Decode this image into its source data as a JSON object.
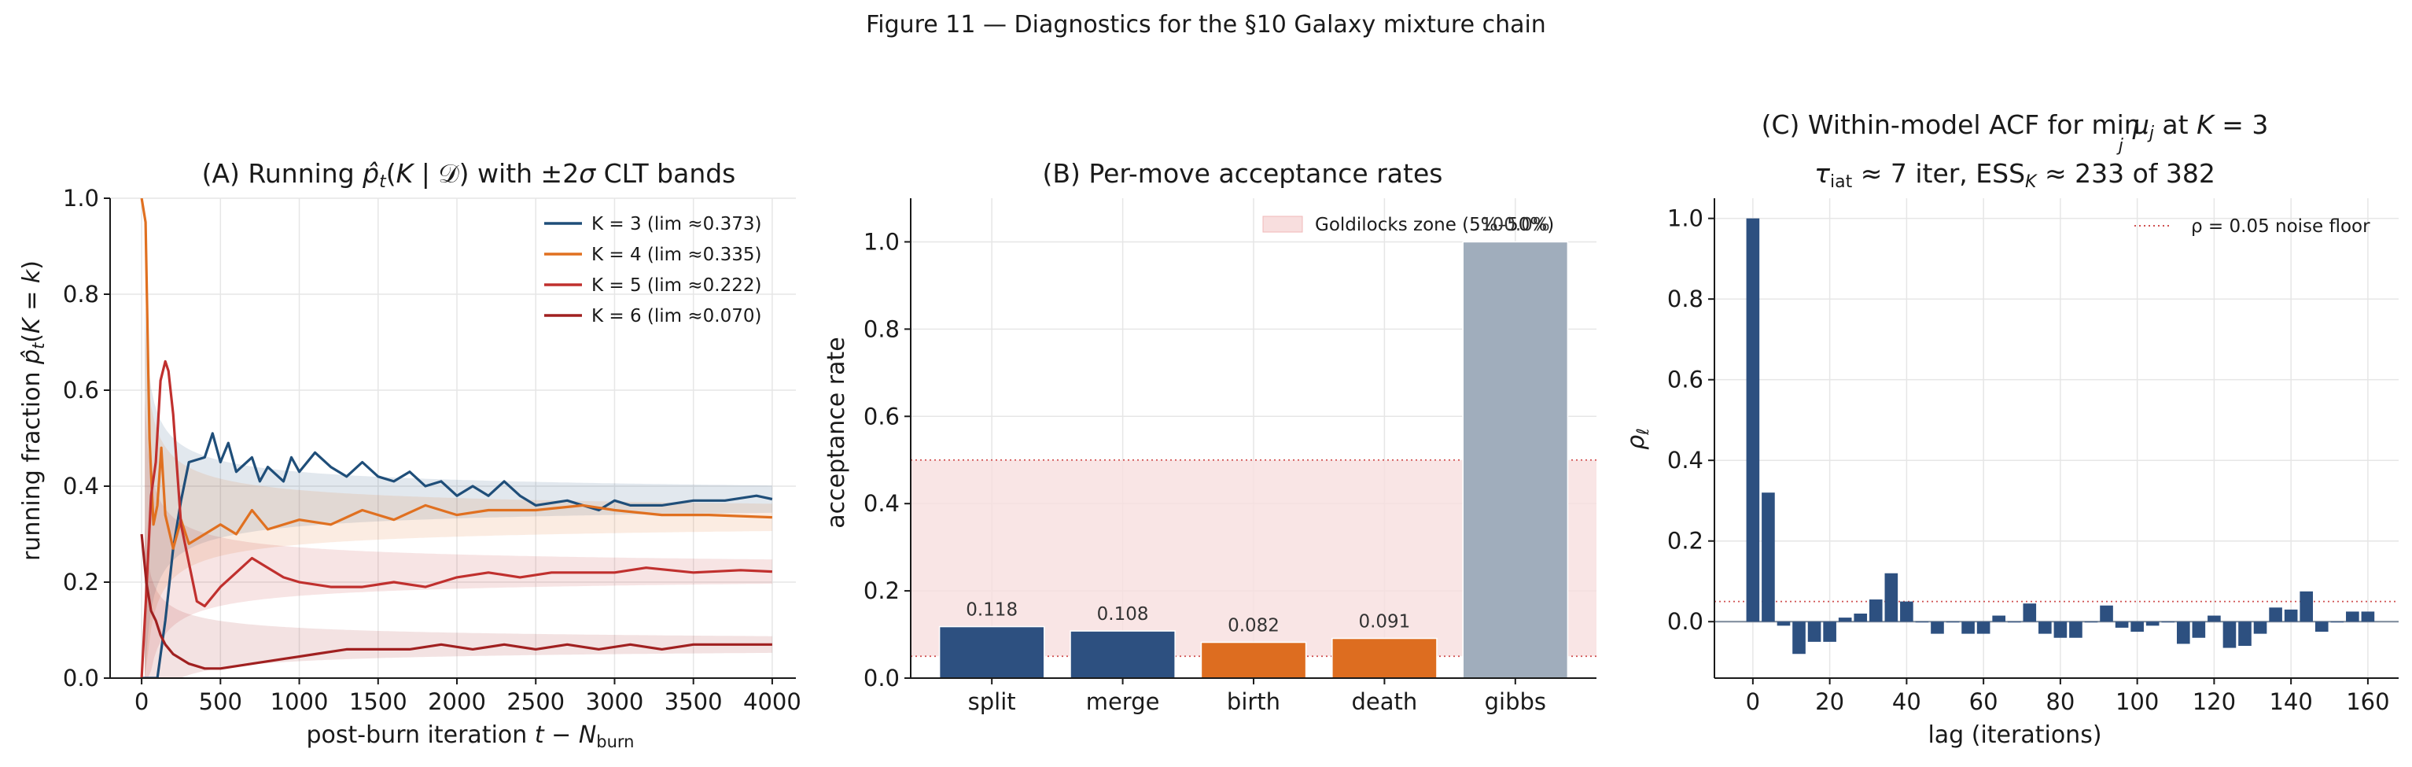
{
  "figure_title": "Figure 11 — Diagnostics for the §10 Galaxy mixture chain",
  "colors": {
    "K3": "#1f4e79",
    "K4": "#e07020",
    "K5": "#c0302e",
    "K6": "#a02020",
    "blue_bar": "#2d5080",
    "orange_bar": "#dd6d20",
    "gray_bar": "#a0adbc",
    "band_fill": "#f8dede",
    "ref_red": "#d05050"
  },
  "chart_data": [
    {
      "id": "A",
      "type": "line",
      "title": "(A) Running p̂ₜ(K | 𝒟) with ±2σ CLT bands",
      "xlabel": "post-burn iteration t − N_burn",
      "ylabel": "running fraction p̂ₜ(K = k)",
      "xlim": [
        -200,
        4150
      ],
      "ylim": [
        0,
        1.0
      ],
      "xticks": [
        0,
        500,
        1000,
        1500,
        2000,
        2500,
        3000,
        3500,
        4000
      ],
      "yticks": [
        0.0,
        0.2,
        0.4,
        0.6,
        0.8,
        1.0
      ],
      "grid": true,
      "legend": "top-right",
      "series": [
        {
          "name": "K = 3 (lim ≈0.373)",
          "color": "#1f4e79",
          "x": [
            0,
            100,
            150,
            200,
            250,
            300,
            400,
            450,
            500,
            550,
            600,
            700,
            750,
            800,
            900,
            950,
            1000,
            1100,
            1200,
            1300,
            1400,
            1500,
            1600,
            1700,
            1800,
            1900,
            2000,
            2100,
            2200,
            2300,
            2400,
            2500,
            2700,
            2900,
            3000,
            3100,
            3300,
            3500,
            3700,
            3900,
            4000
          ],
          "y": [
            0,
            0,
            0.12,
            0.27,
            0.37,
            0.45,
            0.46,
            0.51,
            0.45,
            0.49,
            0.43,
            0.46,
            0.41,
            0.44,
            0.41,
            0.46,
            0.43,
            0.47,
            0.44,
            0.42,
            0.45,
            0.42,
            0.41,
            0.43,
            0.4,
            0.41,
            0.38,
            0.4,
            0.38,
            0.41,
            0.38,
            0.36,
            0.37,
            0.35,
            0.37,
            0.36,
            0.36,
            0.37,
            0.37,
            0.38,
            0.373
          ]
        },
        {
          "name": "K = 4 (lim ≈0.335)",
          "color": "#e07020",
          "x": [
            0,
            25,
            50,
            75,
            100,
            125,
            150,
            200,
            250,
            300,
            400,
            500,
            600,
            700,
            800,
            1000,
            1200,
            1400,
            1600,
            1800,
            2000,
            2200,
            2500,
            2800,
            3000,
            3300,
            3600,
            4000
          ],
          "y": [
            1.0,
            0.95,
            0.5,
            0.32,
            0.36,
            0.48,
            0.34,
            0.27,
            0.33,
            0.28,
            0.3,
            0.32,
            0.3,
            0.35,
            0.31,
            0.33,
            0.32,
            0.35,
            0.33,
            0.36,
            0.34,
            0.35,
            0.35,
            0.36,
            0.35,
            0.34,
            0.34,
            0.335
          ]
        },
        {
          "name": "K = 5 (lim ≈0.222)",
          "color": "#c0302e",
          "x": [
            0,
            30,
            60,
            90,
            120,
            150,
            170,
            200,
            250,
            300,
            350,
            400,
            500,
            600,
            700,
            800,
            900,
            1000,
            1200,
            1400,
            1600,
            1800,
            2000,
            2200,
            2400,
            2600,
            2800,
            3000,
            3200,
            3500,
            3800,
            4000
          ],
          "y": [
            0,
            0.18,
            0.38,
            0.45,
            0.62,
            0.66,
            0.64,
            0.55,
            0.32,
            0.24,
            0.16,
            0.15,
            0.19,
            0.22,
            0.25,
            0.23,
            0.21,
            0.2,
            0.19,
            0.19,
            0.2,
            0.19,
            0.21,
            0.22,
            0.21,
            0.22,
            0.22,
            0.22,
            0.23,
            0.22,
            0.225,
            0.222
          ]
        },
        {
          "name": "K = 6 (lim ≈0.070)",
          "color": "#a02020",
          "x": [
            0,
            30,
            60,
            90,
            120,
            150,
            200,
            250,
            300,
            400,
            500,
            700,
            900,
            1100,
            1300,
            1500,
            1700,
            1900,
            2100,
            2300,
            2500,
            2700,
            2900,
            3100,
            3300,
            3500,
            3700,
            4000
          ],
          "y": [
            0.3,
            0.2,
            0.14,
            0.12,
            0.09,
            0.07,
            0.05,
            0.04,
            0.03,
            0.02,
            0.02,
            0.03,
            0.04,
            0.05,
            0.06,
            0.06,
            0.06,
            0.07,
            0.06,
            0.07,
            0.06,
            0.07,
            0.06,
            0.07,
            0.06,
            0.07,
            0.07,
            0.07
          ]
        }
      ],
      "bands": [
        {
          "series": "K3",
          "limit": 0.373,
          "sigma0": 0.9
        },
        {
          "series": "K4",
          "limit": 0.335,
          "sigma0": 0.9
        },
        {
          "series": "K5",
          "limit": 0.222,
          "sigma0": 0.8
        },
        {
          "series": "K6",
          "limit": 0.07,
          "sigma0": 0.55
        }
      ]
    },
    {
      "id": "B",
      "type": "bar",
      "title": "(B) Per-move acceptance rates",
      "ylabel": "acceptance rate",
      "ylim": [
        0,
        1.1
      ],
      "yticks": [
        0.0,
        0.2,
        0.4,
        0.6,
        0.8,
        1.0
      ],
      "categories": [
        "split",
        "merge",
        "birth",
        "death",
        "gibbs"
      ],
      "values": [
        0.118,
        0.108,
        0.082,
        0.091,
        1.0
      ],
      "value_labels": [
        "0.118",
        "0.108",
        "0.082",
        "0.091",
        "100.0%"
      ],
      "bar_colors": [
        "#2d5080",
        "#2d5080",
        "#dd6d20",
        "#dd6d20",
        "#a0adbc"
      ],
      "band": {
        "label": "Goldilocks zone (5%–50%)",
        "low": 0.05,
        "high": 0.5
      },
      "grid": true,
      "legend": "top-right"
    },
    {
      "id": "C",
      "type": "bar",
      "title_line1": "(C) Within-model ACF for min_j μ_j at K = 3",
      "title_line2": "τ_iat ≈ 7 iter, ESS_K ≈ 233 of 382",
      "xlabel": "lag (iterations)",
      "ylabel": "ρ_ℓ",
      "xlim": [
        -10,
        168
      ],
      "ylim": [
        -0.14,
        1.05
      ],
      "xticks": [
        0,
        20,
        40,
        60,
        80,
        100,
        120,
        140,
        160
      ],
      "yticks": [
        0.0,
        0.2,
        0.4,
        0.6,
        0.8,
        1.0
      ],
      "noise_floor": {
        "label": "ρ = 0.05 noise floor",
        "value": 0.05
      },
      "lags": [
        0,
        4,
        8,
        12,
        16,
        20,
        24,
        28,
        32,
        36,
        40,
        44,
        48,
        52,
        56,
        60,
        64,
        68,
        72,
        76,
        80,
        84,
        88,
        92,
        96,
        100,
        104,
        108,
        112,
        116,
        120,
        124,
        128,
        132,
        136,
        140,
        144,
        148,
        152,
        156,
        160
      ],
      "values": [
        1.0,
        0.32,
        -0.01,
        -0.08,
        -0.05,
        -0.05,
        0.01,
        0.02,
        0.055,
        0.12,
        0.05,
        0.0,
        -0.03,
        0.0,
        -0.03,
        -0.03,
        0.015,
        0.0,
        0.045,
        -0.03,
        -0.04,
        -0.04,
        0.0,
        0.04,
        -0.015,
        -0.025,
        -0.01,
        0.0,
        -0.055,
        -0.04,
        0.015,
        -0.065,
        -0.06,
        -0.03,
        0.035,
        0.03,
        0.075,
        -0.025,
        0.0,
        0.025,
        0.025
      ],
      "bar_color": "#2d5080",
      "grid": true,
      "legend": "top-right"
    }
  ]
}
